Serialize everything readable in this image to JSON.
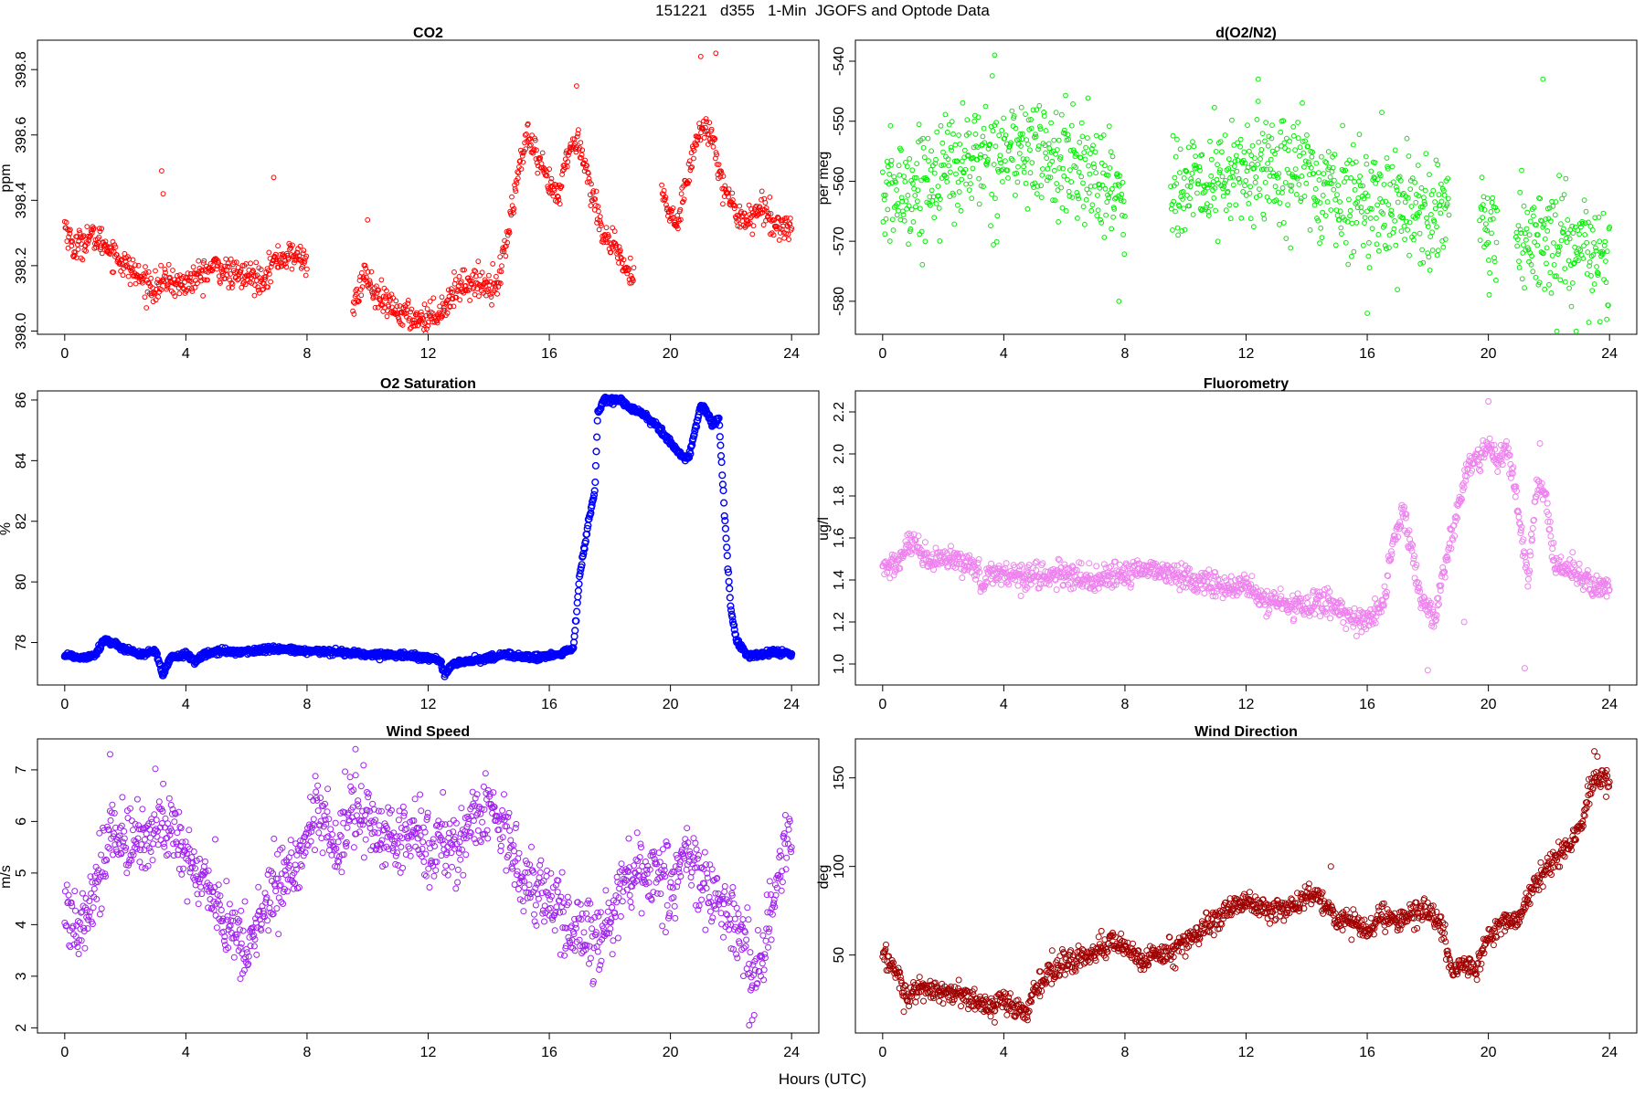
{
  "figure": {
    "title": "151221   d355   1-Min  JGOFS and Optode Data",
    "xlabel": "Hours (UTC)"
  },
  "chart_data": [
    {
      "type": "scatter",
      "title": "CO2",
      "ylabel": "ppm",
      "color": "#ff0000",
      "marker_radius": 2.4,
      "xlim": [
        -0.9,
        24.9
      ],
      "ylim": [
        397.99,
        398.89
      ],
      "xticks": [
        0,
        4,
        8,
        12,
        16,
        20,
        24
      ],
      "yticks": [
        398.0,
        398.2,
        398.4,
        398.6,
        398.8
      ],
      "ytick_format": "1",
      "gaps": [
        [
          8.0,
          9.5
        ],
        [
          18.8,
          19.7
        ]
      ],
      "anchors": [
        [
          0.0,
          398.33
        ],
        [
          0.3,
          398.25
        ],
        [
          0.8,
          398.29
        ],
        [
          1.3,
          398.27
        ],
        [
          1.8,
          398.22
        ],
        [
          2.5,
          398.16
        ],
        [
          3.0,
          398.13
        ],
        [
          3.4,
          398.16
        ],
        [
          3.8,
          398.14
        ],
        [
          4.3,
          398.16
        ],
        [
          5.0,
          398.2
        ],
        [
          5.5,
          398.17
        ],
        [
          6.0,
          398.17
        ],
        [
          6.5,
          398.16
        ],
        [
          7.0,
          398.22
        ],
        [
          7.5,
          398.23
        ],
        [
          8.0,
          398.22
        ],
        [
          9.5,
          398.05
        ],
        [
          9.9,
          398.18
        ],
        [
          10.3,
          398.1
        ],
        [
          11.0,
          398.06
        ],
        [
          11.5,
          398.04
        ],
        [
          12.0,
          398.04
        ],
        [
          12.5,
          398.07
        ],
        [
          13.0,
          398.14
        ],
        [
          13.5,
          398.15
        ],
        [
          14.0,
          398.14
        ],
        [
          14.3,
          398.15
        ],
        [
          14.6,
          398.28
        ],
        [
          15.0,
          398.5
        ],
        [
          15.3,
          398.6
        ],
        [
          15.6,
          398.52
        ],
        [
          16.0,
          398.45
        ],
        [
          16.3,
          398.4
        ],
        [
          16.6,
          398.55
        ],
        [
          17.0,
          398.58
        ],
        [
          17.4,
          398.42
        ],
        [
          17.8,
          398.3
        ],
        [
          18.2,
          398.24
        ],
        [
          18.8,
          398.15
        ],
        [
          19.7,
          398.42
        ],
        [
          20.2,
          398.32
        ],
        [
          20.6,
          398.5
        ],
        [
          21.0,
          398.62
        ],
        [
          21.4,
          398.6
        ],
        [
          21.8,
          398.42
        ],
        [
          22.2,
          398.36
        ],
        [
          22.6,
          398.34
        ],
        [
          23.0,
          398.38
        ],
        [
          23.4,
          398.33
        ],
        [
          23.8,
          398.32
        ]
      ],
      "noise": 0.022,
      "spikes": [
        [
          3.2,
          398.49
        ],
        [
          3.25,
          398.42
        ],
        [
          6.9,
          398.47
        ],
        [
          10.0,
          398.34
        ],
        [
          21.0,
          398.84
        ],
        [
          21.5,
          398.85
        ],
        [
          16.9,
          398.75
        ]
      ]
    },
    {
      "type": "scatter",
      "title": "d(O2/N2)",
      "ylabel": "per meg",
      "color": "#00ee00",
      "marker_radius": 2.4,
      "xlim": [
        -0.9,
        24.9
      ],
      "ylim": [
        -585.5,
        -536.5
      ],
      "xticks": [
        0,
        4,
        8,
        12,
        16,
        20,
        24
      ],
      "yticks": [
        -580,
        -570,
        -560,
        -550,
        -540
      ],
      "ytick_format": "0",
      "gaps": [
        [
          8.0,
          9.5
        ],
        [
          18.7,
          19.7
        ],
        [
          20.3,
          20.9
        ]
      ],
      "anchors": [
        [
          0.0,
          -563.0
        ],
        [
          1.0,
          -561.0
        ],
        [
          2.0,
          -558.0
        ],
        [
          3.0,
          -556.0
        ],
        [
          4.0,
          -555.0
        ],
        [
          5.0,
          -555.0
        ],
        [
          6.0,
          -557.0
        ],
        [
          7.0,
          -559.0
        ],
        [
          8.0,
          -562.0
        ],
        [
          9.5,
          -562.0
        ],
        [
          10.5,
          -561.0
        ],
        [
          11.5,
          -559.0
        ],
        [
          12.5,
          -558.0
        ],
        [
          13.5,
          -557.0
        ],
        [
          14.5,
          -561.0
        ],
        [
          15.5,
          -563.0
        ],
        [
          16.5,
          -563.0
        ],
        [
          17.5,
          -564.0
        ],
        [
          18.5,
          -566.0
        ],
        [
          19.7,
          -568.0
        ],
        [
          20.3,
          -571.0
        ],
        [
          20.9,
          -570.0
        ],
        [
          21.8,
          -570.0
        ],
        [
          22.8,
          -571.0
        ],
        [
          23.8,
          -574.0
        ]
      ],
      "noise": 4.6,
      "spikes": [
        [
          3.7,
          -539.0
        ],
        [
          12.4,
          -543.0
        ],
        [
          21.8,
          -543.0
        ],
        [
          7.8,
          -580.0
        ],
        [
          16.0,
          -582.0
        ],
        [
          22.9,
          -585.0
        ]
      ]
    },
    {
      "type": "scatter",
      "title": "O2 Saturation",
      "ylabel": "%",
      "color": "#0000ff",
      "marker_radius": 3.4,
      "xlim": [
        -0.9,
        24.9
      ],
      "ylim": [
        76.6,
        86.3
      ],
      "xticks": [
        0,
        4,
        8,
        12,
        16,
        20,
        24
      ],
      "yticks": [
        78,
        80,
        82,
        84,
        86
      ],
      "ytick_format": "0",
      "gaps": [],
      "anchors": [
        [
          0.0,
          77.6
        ],
        [
          0.5,
          77.5
        ],
        [
          1.0,
          77.6
        ],
        [
          1.3,
          78.1
        ],
        [
          1.7,
          77.9
        ],
        [
          2.0,
          77.8
        ],
        [
          2.5,
          77.6
        ],
        [
          3.0,
          77.7
        ],
        [
          3.25,
          76.9
        ],
        [
          3.5,
          77.5
        ],
        [
          4.0,
          77.6
        ],
        [
          4.3,
          77.4
        ],
        [
          4.6,
          77.6
        ],
        [
          5.0,
          77.7
        ],
        [
          6.0,
          77.7
        ],
        [
          7.0,
          77.8
        ],
        [
          8.0,
          77.7
        ],
        [
          9.0,
          77.7
        ],
        [
          10.0,
          77.6
        ],
        [
          11.0,
          77.6
        ],
        [
          12.0,
          77.5
        ],
        [
          12.4,
          77.4
        ],
        [
          12.55,
          76.9
        ],
        [
          12.8,
          77.3
        ],
        [
          13.5,
          77.4
        ],
        [
          14.5,
          77.6
        ],
        [
          15.5,
          77.5
        ],
        [
          16.3,
          77.6
        ],
        [
          16.8,
          77.8
        ],
        [
          17.0,
          80.2
        ],
        [
          17.3,
          82.0
        ],
        [
          17.5,
          83.0
        ],
        [
          17.6,
          85.5
        ],
        [
          17.8,
          86.0
        ],
        [
          18.3,
          86.0
        ],
        [
          18.7,
          85.7
        ],
        [
          19.0,
          85.6
        ],
        [
          19.5,
          85.2
        ],
        [
          20.0,
          84.6
        ],
        [
          20.4,
          84.1
        ],
        [
          20.6,
          84.1
        ],
        [
          21.0,
          85.8
        ],
        [
          21.2,
          85.6
        ],
        [
          21.4,
          85.2
        ],
        [
          21.6,
          85.4
        ],
        [
          21.8,
          82.0
        ],
        [
          22.0,
          79.0
        ],
        [
          22.2,
          78.0
        ],
        [
          22.5,
          77.6
        ],
        [
          23.0,
          77.6
        ],
        [
          23.5,
          77.7
        ],
        [
          24.0,
          77.6
        ]
      ],
      "noise": 0.05,
      "spikes": []
    },
    {
      "type": "scatter",
      "title": "Fluorometry",
      "ylabel": "ug/l",
      "color": "#ee82ee",
      "marker_radius": 3.0,
      "xlim": [
        -0.9,
        24.9
      ],
      "ylim": [
        0.9,
        2.3
      ],
      "xticks": [
        0,
        4,
        8,
        12,
        16,
        20,
        24
      ],
      "yticks": [
        1.0,
        1.2,
        1.4,
        1.6,
        1.8,
        2.0,
        2.2
      ],
      "ytick_format": "1",
      "gaps": [],
      "anchors": [
        [
          0.0,
          1.45
        ],
        [
          0.5,
          1.48
        ],
        [
          0.9,
          1.58
        ],
        [
          1.5,
          1.48
        ],
        [
          2.0,
          1.5
        ],
        [
          2.5,
          1.48
        ],
        [
          3.0,
          1.48
        ],
        [
          3.3,
          1.38
        ],
        [
          3.6,
          1.44
        ],
        [
          4.0,
          1.43
        ],
        [
          5.0,
          1.42
        ],
        [
          6.0,
          1.42
        ],
        [
          7.0,
          1.4
        ],
        [
          8.0,
          1.42
        ],
        [
          8.5,
          1.46
        ],
        [
          9.0,
          1.45
        ],
        [
          10.0,
          1.41
        ],
        [
          11.0,
          1.38
        ],
        [
          11.5,
          1.35
        ],
        [
          12.0,
          1.38
        ],
        [
          12.5,
          1.3
        ],
        [
          13.0,
          1.3
        ],
        [
          13.5,
          1.27
        ],
        [
          14.0,
          1.28
        ],
        [
          14.5,
          1.3
        ],
        [
          15.0,
          1.27
        ],
        [
          15.5,
          1.22
        ],
        [
          16.0,
          1.2
        ],
        [
          16.5,
          1.28
        ],
        [
          16.9,
          1.6
        ],
        [
          17.2,
          1.72
        ],
        [
          17.5,
          1.5
        ],
        [
          17.8,
          1.3
        ],
        [
          18.2,
          1.2
        ],
        [
          18.6,
          1.5
        ],
        [
          19.0,
          1.75
        ],
        [
          19.3,
          1.92
        ],
        [
          19.7,
          1.98
        ],
        [
          20.0,
          2.05
        ],
        [
          20.3,
          1.95
        ],
        [
          20.6,
          2.05
        ],
        [
          21.0,
          1.7
        ],
        [
          21.3,
          1.4
        ],
        [
          21.6,
          1.85
        ],
        [
          21.9,
          1.8
        ],
        [
          22.2,
          1.45
        ],
        [
          22.6,
          1.45
        ],
        [
          23.0,
          1.42
        ],
        [
          23.5,
          1.37
        ],
        [
          24.0,
          1.36
        ]
      ],
      "noise": 0.03,
      "spikes": [
        [
          18.0,
          0.97
        ],
        [
          20.0,
          2.25
        ],
        [
          21.2,
          0.98
        ],
        [
          21.7,
          2.05
        ],
        [
          19.2,
          1.2
        ]
      ]
    },
    {
      "type": "scatter",
      "title": "Wind Speed",
      "ylabel": "m/s",
      "color": "#a020f0",
      "marker_radius": 3.0,
      "xlim": [
        -0.9,
        24.9
      ],
      "ylim": [
        1.9,
        7.6
      ],
      "xticks": [
        0,
        4,
        8,
        12,
        16,
        20,
        24
      ],
      "yticks": [
        2,
        3,
        4,
        5,
        6,
        7
      ],
      "ytick_format": "0",
      "gaps": [],
      "anchors": [
        [
          0.0,
          4.3
        ],
        [
          0.4,
          4.0
        ],
        [
          0.8,
          4.5
        ],
        [
          1.2,
          5.0
        ],
        [
          1.5,
          5.8
        ],
        [
          2.0,
          5.5
        ],
        [
          2.5,
          5.6
        ],
        [
          3.0,
          6.0
        ],
        [
          3.5,
          5.9
        ],
        [
          4.0,
          5.2
        ],
        [
          4.5,
          5.0
        ],
        [
          5.0,
          4.5
        ],
        [
          5.3,
          4.0
        ],
        [
          5.6,
          3.8
        ],
        [
          6.0,
          3.5
        ],
        [
          6.5,
          4.2
        ],
        [
          7.0,
          4.8
        ],
        [
          7.5,
          5.0
        ],
        [
          8.0,
          5.8
        ],
        [
          8.5,
          6.0
        ],
        [
          9.0,
          5.5
        ],
        [
          9.5,
          6.2
        ],
        [
          10.0,
          6.0
        ],
        [
          10.5,
          5.7
        ],
        [
          11.0,
          5.6
        ],
        [
          11.5,
          5.8
        ],
        [
          12.0,
          5.5
        ],
        [
          12.5,
          5.6
        ],
        [
          13.0,
          5.5
        ],
        [
          13.5,
          6.0
        ],
        [
          14.0,
          6.3
        ],
        [
          14.5,
          6.0
        ],
        [
          15.0,
          5.0
        ],
        [
          15.5,
          4.8
        ],
        [
          16.0,
          4.5
        ],
        [
          16.5,
          4.0
        ],
        [
          17.0,
          3.8
        ],
        [
          17.5,
          3.7
        ],
        [
          18.0,
          4.2
        ],
        [
          18.5,
          4.8
        ],
        [
          19.0,
          5.0
        ],
        [
          19.5,
          5.0
        ],
        [
          20.0,
          4.6
        ],
        [
          20.5,
          5.5
        ],
        [
          21.0,
          4.8
        ],
        [
          21.5,
          4.5
        ],
        [
          22.0,
          4.0
        ],
        [
          22.5,
          3.5
        ],
        [
          22.8,
          2.8
        ],
        [
          23.2,
          3.8
        ],
        [
          23.6,
          5.0
        ],
        [
          24.0,
          6.0
        ]
      ],
      "noise": 0.35,
      "spikes": [
        [
          1.5,
          7.3
        ],
        [
          9.6,
          7.4
        ],
        [
          22.6,
          2.05
        ],
        [
          22.7,
          2.15
        ],
        [
          5.8,
          2.95
        ]
      ]
    },
    {
      "type": "scatter",
      "title": "Wind Direction",
      "ylabel": "deg",
      "color": "#a00000",
      "marker_radius": 3.0,
      "xlim": [
        -0.9,
        24.9
      ],
      "ylim": [
        6,
        172
      ],
      "xticks": [
        0,
        4,
        8,
        12,
        16,
        20,
        24
      ],
      "yticks": [
        50,
        100,
        150
      ],
      "ytick_format": "0",
      "gaps": [],
      "anchors": [
        [
          0.0,
          50.0
        ],
        [
          0.5,
          40.0
        ],
        [
          0.8,
          25.0
        ],
        [
          1.0,
          30.0
        ],
        [
          1.5,
          32.0
        ],
        [
          2.0,
          28.0
        ],
        [
          2.5,
          28.0
        ],
        [
          3.0,
          25.0
        ],
        [
          3.5,
          20.0
        ],
        [
          4.0,
          24.0
        ],
        [
          4.5,
          20.0
        ],
        [
          4.8,
          15.0
        ],
        [
          5.0,
          30.0
        ],
        [
          5.5,
          40.0
        ],
        [
          6.0,
          45.0
        ],
        [
          6.5,
          48.0
        ],
        [
          7.0,
          52.0
        ],
        [
          7.5,
          58.0
        ],
        [
          8.0,
          55.0
        ],
        [
          8.5,
          48.0
        ],
        [
          9.0,
          50.0
        ],
        [
          9.5,
          52.0
        ],
        [
          10.0,
          58.0
        ],
        [
          10.5,
          62.0
        ],
        [
          11.0,
          70.0
        ],
        [
          11.5,
          78.0
        ],
        [
          12.0,
          80.0
        ],
        [
          12.5,
          78.0
        ],
        [
          13.0,
          75.0
        ],
        [
          13.5,
          78.0
        ],
        [
          14.0,
          82.0
        ],
        [
          14.5,
          82.0
        ],
        [
          15.0,
          70.0
        ],
        [
          15.5,
          70.0
        ],
        [
          16.0,
          62.0
        ],
        [
          16.5,
          75.0
        ],
        [
          17.0,
          70.0
        ],
        [
          17.5,
          72.0
        ],
        [
          18.0,
          75.0
        ],
        [
          18.5,
          65.0
        ],
        [
          18.8,
          40.0
        ],
        [
          19.2,
          45.0
        ],
        [
          19.6,
          42.0
        ],
        [
          20.0,
          60.0
        ],
        [
          20.5,
          68.0
        ],
        [
          21.0,
          70.0
        ],
        [
          21.5,
          90.0
        ],
        [
          22.0,
          100.0
        ],
        [
          22.5,
          108.0
        ],
        [
          23.0,
          120.0
        ],
        [
          23.5,
          150.0
        ],
        [
          23.9,
          148.0
        ]
      ],
      "noise": 3.2,
      "spikes": [
        [
          23.5,
          165.0
        ],
        [
          23.6,
          162.0
        ],
        [
          14.8,
          100.0
        ],
        [
          0.7,
          18.0
        ],
        [
          3.7,
          12.0
        ]
      ]
    }
  ]
}
